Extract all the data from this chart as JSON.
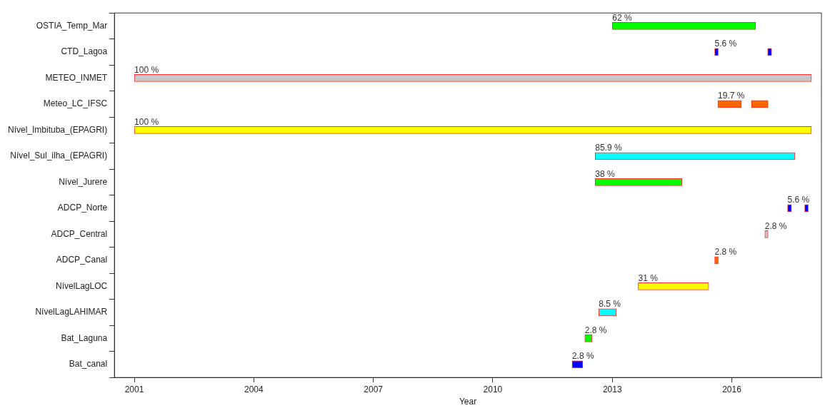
{
  "chart_data": {
    "type": "bar",
    "orientation": "horizontal",
    "xlabel": "Year",
    "grid": false,
    "categories": [
      "OSTIA_Temp_Mar",
      "CTD_Lagoa",
      "METEO_INMET",
      "Meteo_LC_IFSC",
      "Nível_Imbituba_(EPAGRI)",
      "Nível_Sul_ilha_(EPAGRI)",
      "Nível_Jurere",
      "ADCP_Norte",
      "ADCP_Central",
      "ADCP_Canal",
      "NívelLagLOC",
      "NívelLagLAHIMAR",
      "Bat_Laguna",
      "Bat_canal"
    ],
    "xlim": [
      2000.5,
      2018.25
    ],
    "xticks": [
      2001,
      2004,
      2007,
      2010,
      2013,
      2016
    ],
    "series": [
      {
        "base": [
          2013.0,
          2015.57,
          2001,
          2015.65,
          2001,
          2012.57,
          2012.57,
          2017.4,
          2016.83,
          2015.57,
          2013.65,
          2012.66,
          2012.31,
          2011.99
        ],
        "values": [
          3.6,
          0.09,
          17,
          0.59,
          17,
          5.01,
          2.18,
          0.1,
          0.08,
          0.09,
          1.77,
          0.44,
          0.18,
          0.27
        ],
        "colors": [
          "#00ff00",
          "#0000ff",
          "#c8c8c8",
          "#ff6600",
          "#ffff00",
          "#00ffff",
          "#00ff00",
          "#0000ff",
          "#c8c8c8",
          "#ff6600",
          "#ffff00",
          "#00ffff",
          "#00ff00",
          "#0000ff"
        ]
      },
      {
        "base": [
          null,
          2016.9,
          null,
          2016.49,
          null,
          null,
          null,
          2017.83,
          null,
          null,
          null,
          null,
          null,
          null
        ],
        "values": [
          null,
          0.1,
          null,
          0.42,
          null,
          null,
          null,
          0.09,
          null,
          null,
          null,
          null,
          null,
          null
        ],
        "colors": [
          null,
          "#0000ff",
          null,
          "#ff6600",
          null,
          null,
          null,
          "#0000ff",
          null,
          null,
          null,
          null,
          null,
          null
        ]
      }
    ],
    "annotations": [
      {
        "text": "62 %",
        "x": 2013.0,
        "y": "OSTIA_Temp_Mar"
      },
      {
        "text": "5.6 %",
        "x": 2015.57,
        "y": "CTD_Lagoa"
      },
      {
        "text": "100 %",
        "x": 2001,
        "y": "METEO_INMET"
      },
      {
        "text": "19.7 %",
        "x": 2015.65,
        "y": "Meteo_LC_IFSC"
      },
      {
        "text": "100 %",
        "x": 2001,
        "y": "Nível_Imbituba_(EPAGRI)"
      },
      {
        "text": "85.9 %",
        "x": 2012.57,
        "y": "Nível_Sul_ilha_(EPAGRI)"
      },
      {
        "text": "38 %",
        "x": 2012.57,
        "y": "Nível_Jurere"
      },
      {
        "text": "5.6 %",
        "x": 2017.4,
        "y": "ADCP_Norte"
      },
      {
        "text": "2.8 %",
        "x": 2016.83,
        "y": "ADCP_Central"
      },
      {
        "text": "2.8 %",
        "x": 2015.57,
        "y": "ADCP_Canal"
      },
      {
        "text": "31 %",
        "x": 2013.65,
        "y": "NívelLagLOC"
      },
      {
        "text": "8.5 %",
        "x": 2012.66,
        "y": "NívelLagLAHIMAR"
      },
      {
        "text": "2.8 %",
        "x": 2012.31,
        "y": "Bat_Laguna"
      },
      {
        "text": "2.8 %",
        "x": 2011.99,
        "y": "Bat_canal"
      }
    ]
  }
}
